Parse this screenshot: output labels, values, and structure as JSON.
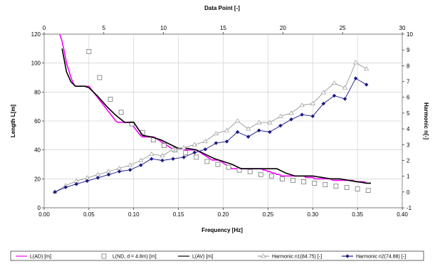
{
  "chart_data": {
    "type": "line",
    "xlabel": "Frequency [Hz]",
    "x2label": "Data Point [-]",
    "ylabel": "Length L[m]",
    "y2label": "Harmonic n[-]",
    "xlim": [
      0,
      0.4
    ],
    "x2lim": [
      0,
      30
    ],
    "ylim": [
      0,
      120
    ],
    "y2lim": [
      -1,
      10
    ],
    "xticks": [
      "0.00",
      "0.05",
      "0.10",
      "0.15",
      "0.20",
      "0.25",
      "0.30",
      "0.35",
      "0.40"
    ],
    "x2ticks": [
      "0",
      "5",
      "10",
      "15",
      "20",
      "25",
      "30"
    ],
    "yticks": [
      "0",
      "20",
      "40",
      "60",
      "80",
      "100",
      "120"
    ],
    "y2ticks": [
      "-1",
      "0",
      "1",
      "2",
      "3",
      "4",
      "5",
      "6",
      "7",
      "8",
      "9",
      "10"
    ],
    "grid": true,
    "legend_position": "bottom",
    "series": [
      {
        "name": "L(AD) [m]",
        "axis": "left",
        "style": "line",
        "color": "#ff00ff",
        "x": [
          0.0175,
          0.02,
          0.0225,
          0.025,
          0.0275,
          0.03,
          0.0325,
          0.035,
          0.0375,
          0.04,
          0.0425,
          0.045,
          0.0475,
          0.05,
          0.0525,
          0.055,
          0.0575,
          0.06,
          0.0625,
          0.065,
          0.0675,
          0.07,
          0.0725,
          0.075,
          0.0775,
          0.08,
          0.0825,
          0.085,
          0.0875,
          0.09,
          0.0925,
          0.095,
          0.0975,
          0.1,
          0.1025,
          0.105,
          0.1075,
          0.11,
          0.1125,
          0.115,
          0.1175,
          0.12,
          0.1225,
          0.125,
          0.1275,
          0.13,
          0.1325,
          0.135,
          0.1375,
          0.14,
          0.1425,
          0.145,
          0.1475,
          0.15,
          0.1525,
          0.155,
          0.1575,
          0.16,
          0.1625,
          0.165,
          0.1675,
          0.17,
          0.1725,
          0.175,
          0.1775,
          0.18,
          0.1825,
          0.185,
          0.1875,
          0.19,
          0.1925,
          0.195,
          0.1975,
          0.2,
          0.2025,
          0.205,
          0.2075,
          0.21,
          0.2125,
          0.215,
          0.2175,
          0.22,
          0.2225,
          0.225,
          0.2275,
          0.23,
          0.2325,
          0.235,
          0.2375,
          0.24,
          0.2425,
          0.245,
          0.2475,
          0.25,
          0.2525,
          0.255,
          0.2575,
          0.26,
          0.2625,
          0.265,
          0.2675,
          0.27,
          0.2725,
          0.275,
          0.2775,
          0.28,
          0.2825,
          0.285,
          0.2875,
          0.29,
          0.2925,
          0.295,
          0.2975,
          0.3,
          0.3025,
          0.305,
          0.3075,
          0.31,
          0.3125,
          0.315,
          0.3175,
          0.32,
          0.3225,
          0.325,
          0.3275,
          0.33,
          0.3325,
          0.335,
          0.3375,
          0.34,
          0.3425,
          0.345,
          0.3475,
          0.35,
          0.3525,
          0.355,
          0.3575,
          0.36,
          0.3625,
          0.365
        ],
        "y": [
          120,
          115,
          108,
          100,
          95,
          90,
          86,
          84,
          84,
          84,
          84,
          84,
          84,
          84,
          82,
          80,
          78,
          76,
          74,
          72,
          70,
          68,
          66,
          64,
          62,
          60,
          59,
          59,
          59,
          59,
          59,
          59,
          58,
          56,
          54,
          52,
          50,
          49,
          49,
          49,
          49,
          49,
          49,
          48,
          47,
          46,
          45,
          44,
          43,
          42,
          41,
          41,
          41,
          41,
          41,
          41,
          40,
          40,
          40,
          40,
          40,
          40,
          39,
          38,
          37,
          36,
          35,
          34,
          33,
          33,
          33,
          33,
          32,
          31,
          30,
          29,
          28,
          27,
          27,
          27,
          27,
          27,
          27,
          27,
          27,
          27,
          27,
          27,
          27,
          27,
          27,
          26,
          26,
          25,
          25,
          24,
          24,
          23,
          23,
          22,
          22,
          22,
          22,
          22,
          22,
          22,
          22,
          22,
          22,
          22,
          21,
          21,
          21,
          21,
          20,
          20,
          20,
          20,
          20,
          20,
          20,
          20,
          19,
          19,
          19,
          19,
          19,
          19,
          19,
          19,
          19,
          19,
          18,
          18,
          18,
          18,
          18,
          17,
          17,
          17
        ]
      },
      {
        "name": "L(ND, d = 4.8m) [m]",
        "axis": "left",
        "style": "marker-square",
        "color": "#777777",
        "x": [
          0.05,
          0.062,
          0.074,
          0.086,
          0.098,
          0.11,
          0.122,
          0.134,
          0.146,
          0.158,
          0.17,
          0.182,
          0.194,
          0.206,
          0.218,
          0.23,
          0.242,
          0.254,
          0.266,
          0.278,
          0.29,
          0.302,
          0.314,
          0.326,
          0.338,
          0.35,
          0.362
        ],
        "y": [
          108,
          90,
          75,
          66,
          58,
          52,
          47,
          43,
          40,
          38,
          35,
          32,
          30,
          28,
          26,
          25,
          23,
          22,
          20,
          19,
          18,
          17,
          16,
          15,
          14,
          13,
          12
        ]
      },
      {
        "name": "L(AV) [m]",
        "axis": "left",
        "style": "line",
        "color": "#000000",
        "x": [
          0.02,
          0.025,
          0.03,
          0.035,
          0.045,
          0.05,
          0.06,
          0.07,
          0.08,
          0.09,
          0.1,
          0.11,
          0.12,
          0.13,
          0.14,
          0.15,
          0.16,
          0.17,
          0.18,
          0.19,
          0.2,
          0.21,
          0.22,
          0.23,
          0.24,
          0.25,
          0.26,
          0.27,
          0.28,
          0.29,
          0.3,
          0.31,
          0.32,
          0.33,
          0.34,
          0.35,
          0.36,
          0.365
        ],
        "y": [
          110,
          94,
          87,
          84,
          84,
          83,
          77,
          70,
          64,
          59,
          59,
          50,
          49,
          47,
          44,
          41,
          41,
          40,
          37,
          34,
          32,
          30,
          27,
          27,
          27,
          27,
          27,
          24,
          22,
          22,
          22,
          21,
          20,
          20,
          19,
          18,
          17,
          17
        ]
      },
      {
        "name": "Harmonic n1(84.75) [-]",
        "axis": "right",
        "style": "line-marker-triangle",
        "color": "#999999",
        "x": [
          0.012,
          0.024,
          0.036,
          0.048,
          0.06,
          0.072,
          0.084,
          0.096,
          0.108,
          0.12,
          0.132,
          0.144,
          0.156,
          0.168,
          0.18,
          0.192,
          0.204,
          0.216,
          0.228,
          0.24,
          0.252,
          0.264,
          0.276,
          0.288,
          0.3,
          0.312,
          0.324,
          0.336,
          0.348,
          0.36
        ],
        "y": [
          0,
          0.4,
          0.7,
          0.9,
          1.1,
          1.3,
          1.5,
          1.7,
          2.0,
          2.4,
          2.3,
          2.7,
          2.8,
          3.0,
          3.2,
          3.7,
          3.9,
          4.5,
          4.0,
          4.4,
          4.4,
          4.8,
          5.0,
          5.5,
          5.6,
          6.3,
          6.9,
          6.6,
          8.2,
          7.8
        ]
      },
      {
        "name": "Harmonic n2(74.88) [-]",
        "axis": "right",
        "style": "line-marker-diamond",
        "color": "#1a1a8c",
        "x": [
          0.012,
          0.024,
          0.036,
          0.048,
          0.06,
          0.072,
          0.084,
          0.096,
          0.108,
          0.12,
          0.132,
          0.144,
          0.156,
          0.168,
          0.18,
          0.192,
          0.204,
          0.216,
          0.228,
          0.24,
          0.252,
          0.264,
          0.276,
          0.288,
          0.3,
          0.312,
          0.324,
          0.336,
          0.348,
          0.36
        ],
        "y": [
          0,
          0.3,
          0.5,
          0.7,
          0.9,
          1.1,
          1.3,
          1.4,
          1.7,
          2.1,
          2.0,
          2.1,
          2.2,
          2.5,
          2.7,
          3.1,
          3.2,
          3.8,
          3.5,
          3.9,
          3.8,
          4.2,
          4.6,
          4.9,
          4.8,
          5.6,
          6.1,
          5.9,
          7.2,
          6.8
        ]
      }
    ]
  }
}
